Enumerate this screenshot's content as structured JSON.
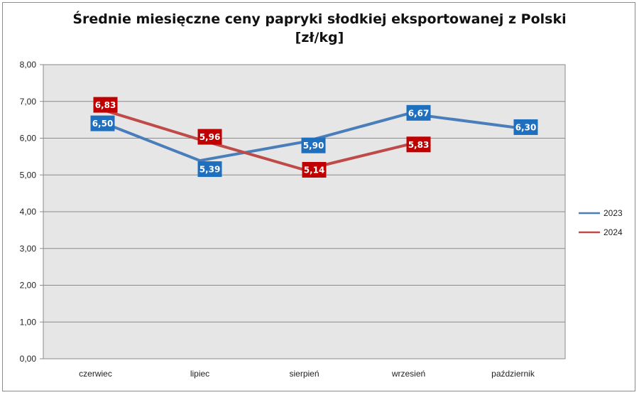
{
  "chart_data": {
    "type": "line",
    "title": "Średnie miesięczne ceny papryki słodkiej eksportowanej z Polski",
    "subtitle": "[zł/kg]",
    "categories": [
      "czerwiec",
      "lipiec",
      "sierpień",
      "wrzesień",
      "październik"
    ],
    "ylim": [
      0,
      8
    ],
    "yticks": [
      "0,00",
      "1,00",
      "2,00",
      "3,00",
      "4,00",
      "5,00",
      "6,00",
      "7,00",
      "8,00"
    ],
    "grid": true,
    "legend_position": "right",
    "series": [
      {
        "name": "2023",
        "color": "#4a7ebb",
        "label_bg": "#1f6fbf",
        "values": [
          6.5,
          5.39,
          5.9,
          6.67,
          6.3
        ],
        "labels": [
          "6,50",
          "5,39",
          "5,90",
          "6,67",
          "6,30"
        ]
      },
      {
        "name": "2024",
        "color": "#be4b48",
        "label_bg": "#c00000",
        "values": [
          6.83,
          5.96,
          5.14,
          5.83,
          null
        ],
        "labels": [
          "6,83",
          "5,96",
          "5,14",
          "5,83",
          null
        ]
      }
    ]
  },
  "colors": {
    "plot_bg": "#e6e6e6",
    "grid": "#8a8a8a"
  }
}
